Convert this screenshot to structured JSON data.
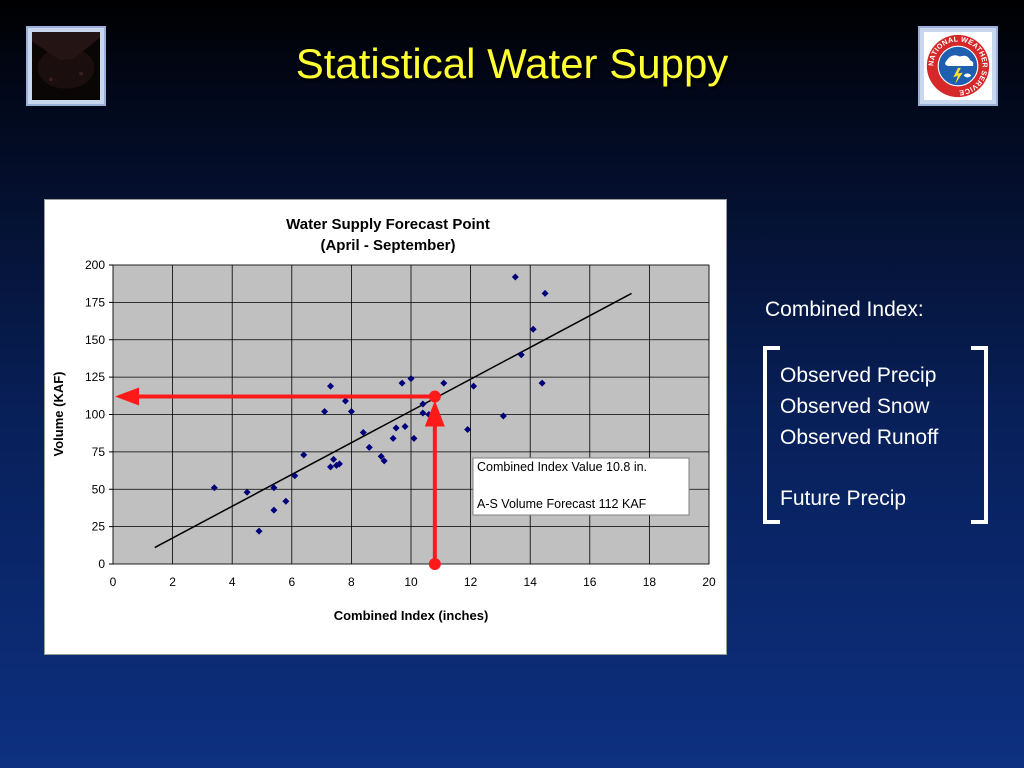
{
  "slide": {
    "title": "Statistical Water Suppy"
  },
  "sidebar": {
    "heading": "Combined Index:",
    "items": [
      "Observed Precip",
      "Observed Snow",
      "Observed Runoff"
    ],
    "future_item": "Future Precip"
  },
  "logos": {
    "right_text": "NATIONAL WEATHER SERVICE"
  },
  "colors": {
    "title": "#ffff33",
    "plot_background": "#c0c0c0",
    "point": "#00007a",
    "trend_line": "#000000",
    "annotation_arrow": "#ff1a1a"
  },
  "chart_data": {
    "type": "scatter",
    "title": "Water Supply Forecast Point",
    "subtitle": "(April - September)",
    "xlabel": "Combined Index (inches)",
    "ylabel": "Volume (KAF)",
    "xlim": [
      0,
      20
    ],
    "ylim": [
      0,
      200
    ],
    "x_ticks": [
      0,
      2,
      4,
      6,
      8,
      10,
      12,
      14,
      16,
      18,
      20
    ],
    "y_ticks": [
      0,
      25,
      50,
      75,
      100,
      125,
      150,
      175,
      200
    ],
    "grid": true,
    "points": [
      [
        3.4,
        51
      ],
      [
        4.5,
        48
      ],
      [
        4.9,
        22
      ],
      [
        5.4,
        36
      ],
      [
        5.4,
        51
      ],
      [
        5.8,
        42
      ],
      [
        6.1,
        59
      ],
      [
        6.4,
        73
      ],
      [
        7.1,
        102
      ],
      [
        7.3,
        119
      ],
      [
        7.3,
        65
      ],
      [
        7.4,
        70
      ],
      [
        7.5,
        66
      ],
      [
        7.6,
        67
      ],
      [
        7.8,
        109
      ],
      [
        8.0,
        102
      ],
      [
        8.4,
        88
      ],
      [
        8.6,
        78
      ],
      [
        9.0,
        72
      ],
      [
        9.1,
        69
      ],
      [
        9.4,
        84
      ],
      [
        9.5,
        91
      ],
      [
        9.7,
        121
      ],
      [
        9.8,
        92
      ],
      [
        10.0,
        124
      ],
      [
        10.1,
        84
      ],
      [
        10.4,
        107
      ],
      [
        10.4,
        101
      ],
      [
        10.6,
        100
      ],
      [
        11.1,
        121
      ],
      [
        11.9,
        90
      ],
      [
        12.1,
        119
      ],
      [
        13.1,
        99
      ],
      [
        13.5,
        192
      ],
      [
        13.7,
        140
      ],
      [
        14.1,
        157
      ],
      [
        14.4,
        121
      ],
      [
        14.5,
        181
      ]
    ],
    "trend_line": {
      "x": [
        1.4,
        17.4
      ],
      "y": [
        11,
        181
      ]
    },
    "annotation": {
      "combined_index_value": 10.8,
      "forecast_volume": 112,
      "lines": [
        "Combined Index Value 10.8 in.",
        "A-S Volume Forecast 112 KAF"
      ]
    }
  }
}
